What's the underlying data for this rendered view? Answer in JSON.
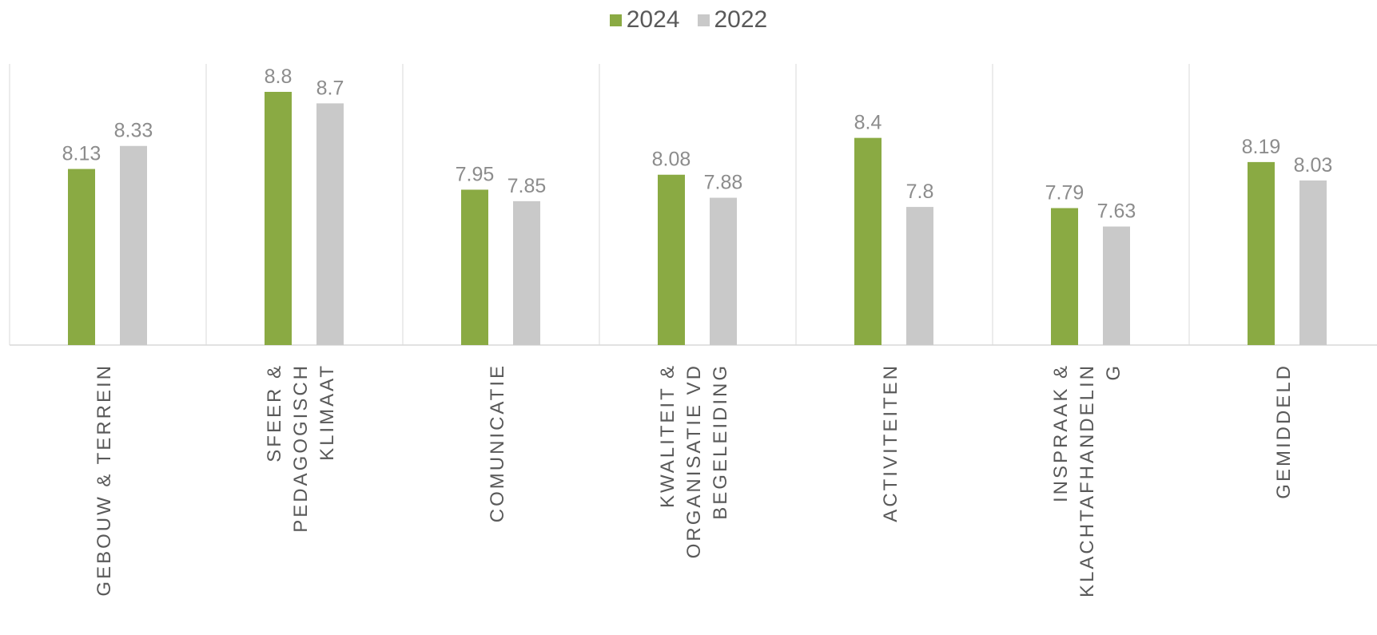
{
  "chart_data": {
    "type": "bar",
    "categories": [
      [
        "GEBOUW & TERREIN"
      ],
      [
        "SFEER &",
        "PEDAGOGISCH",
        "KLIMAAT"
      ],
      [
        "COMUNICATIE"
      ],
      [
        "KWALITEIT &",
        "ORGANISATIE VD",
        "BEGELEIDING"
      ],
      [
        "ACTIVITEITEN"
      ],
      [
        "INSPRAAK &",
        "KLACHTAFHANDELIN",
        "G"
      ],
      [
        "GEMIDDELD"
      ]
    ],
    "series": [
      {
        "name": "2024",
        "color": "#8aaa43",
        "values": [
          8.13,
          8.8,
          7.95,
          8.08,
          8.4,
          7.79,
          8.19
        ]
      },
      {
        "name": "2022",
        "color": "#c9c9c9",
        "values": [
          8.33,
          8.7,
          7.85,
          7.88,
          7.8,
          7.63,
          8.03
        ]
      }
    ],
    "value_labels": [
      [
        "8.13",
        "8.8",
        "7.95",
        "8.08",
        "8.4",
        "7.79",
        "8.19"
      ],
      [
        "8.33",
        "8.7",
        "7.85",
        "7.88",
        "7.8",
        "7.63",
        "8.03"
      ]
    ],
    "ylim": [
      6.6,
      8.9
    ],
    "legend": "top-center",
    "gridlines": "vertical category separators",
    "xlabel": "",
    "ylabel": ""
  }
}
